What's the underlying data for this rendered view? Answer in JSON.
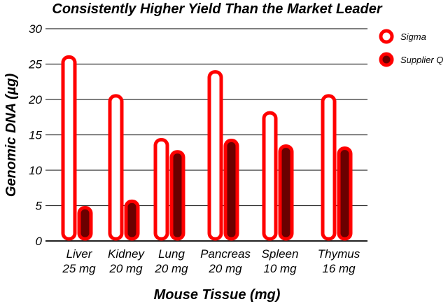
{
  "chart_data": {
    "type": "bar",
    "title": "Consistently Higher Yield Than the Market Leader",
    "xlabel": "Mouse Tissue (mg)",
    "ylabel": "Genomic DNA (µg)",
    "ylim": [
      0,
      30
    ],
    "yticks": [
      0,
      5,
      10,
      15,
      20,
      25,
      30
    ],
    "grid": true,
    "legend_position": "right",
    "categories": [
      {
        "name": "Liver",
        "amount": "25 mg"
      },
      {
        "name": "Kidney",
        "amount": "20 mg"
      },
      {
        "name": "Lung",
        "amount": "20 mg"
      },
      {
        "name": "Pancreas",
        "amount": "20 mg"
      },
      {
        "name": "Spleen",
        "amount": "10 mg"
      },
      {
        "name": "Thymus",
        "amount": "16 mg"
      }
    ],
    "series": [
      {
        "name": "Sigma",
        "values": [
          26.3,
          20.8,
          14.6,
          24.2,
          18.4,
          20.8
        ],
        "fill": "#ffffff",
        "stroke": "#ff0000"
      },
      {
        "name": "Supplier Q",
        "values": [
          5.0,
          5.9,
          12.9,
          14.5,
          13.7,
          13.4
        ],
        "fill": "#6b0000",
        "stroke": "#ff0000"
      }
    ]
  }
}
